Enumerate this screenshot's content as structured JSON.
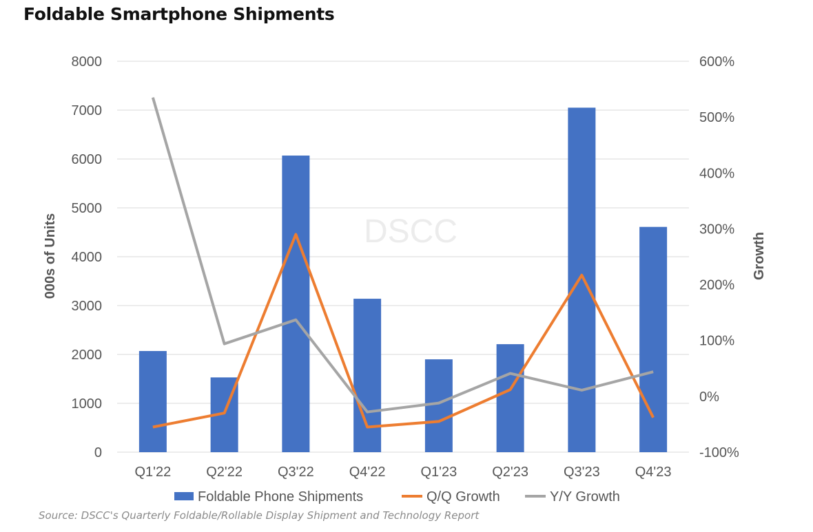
{
  "title": "Foldable Smartphone Shipments",
  "source": "Source: DSCC's Quarterly Foldable/Rollable Display Shipment and Technology Report",
  "watermark": "DSCC",
  "chart_data": {
    "type": "bar",
    "categories": [
      "Q1'22",
      "Q2'22",
      "Q3'22",
      "Q4'22",
      "Q1'23",
      "Q2'23",
      "Q3'23",
      "Q4'23"
    ],
    "series": [
      {
        "name": "Foldable Phone Shipments",
        "type": "bar",
        "axis": "left",
        "color": "#4472C4",
        "values": [
          2070,
          1530,
          6070,
          3140,
          1900,
          2210,
          7050,
          4610
        ]
      },
      {
        "name": "Q/Q Growth",
        "type": "line",
        "axis": "right",
        "color": "#ED7D31",
        "values": [
          -55,
          -30,
          290,
          -55,
          -45,
          12,
          217,
          -38
        ]
      },
      {
        "name": "Y/Y Growth",
        "type": "line",
        "axis": "right",
        "color": "#A5A5A5",
        "values": [
          535,
          94,
          137,
          -28,
          -12,
          41,
          11,
          44
        ]
      }
    ],
    "ylabel": "000s of Units",
    "y2label": "Growth",
    "ylim": [
      0,
      8000
    ],
    "y2lim": [
      -100,
      600
    ],
    "yticks": [
      "0",
      "1000",
      "2000",
      "3000",
      "4000",
      "5000",
      "6000",
      "7000",
      "8000"
    ],
    "y2ticks": [
      "-100%",
      "0%",
      "100%",
      "200%",
      "300%",
      "400%",
      "500%",
      "600%"
    ],
    "grid": true,
    "legend": "bottom"
  }
}
